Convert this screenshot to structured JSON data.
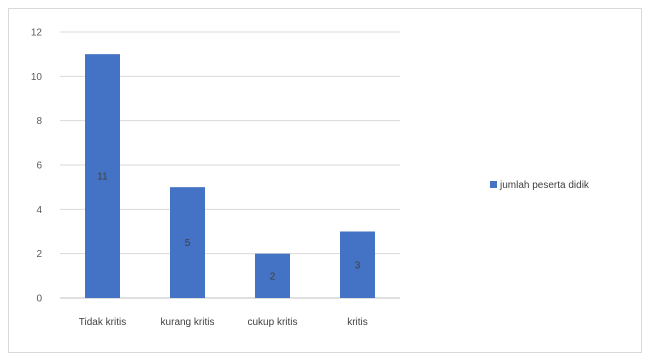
{
  "chart_data": {
    "type": "bar",
    "categories": [
      "Tidak kritis",
      "kurang kritis",
      "cukup kritis",
      "kritis"
    ],
    "series": [
      {
        "name": "jumlah peserta didik",
        "values": [
          11,
          5,
          2,
          3
        ]
      }
    ],
    "data_labels": [
      "11",
      "5",
      "2",
      "3"
    ],
    "title": "",
    "xlabel": "",
    "ylabel": "",
    "ylim": [
      0,
      12
    ],
    "yticks": [
      "0",
      "2",
      "4",
      "6",
      "8",
      "10",
      "12"
    ],
    "grid": true,
    "legend_position": "right",
    "colors": {
      "bar": "#4472c4",
      "grid": "#d9d9d9",
      "axis": "#bfbfbf"
    }
  }
}
